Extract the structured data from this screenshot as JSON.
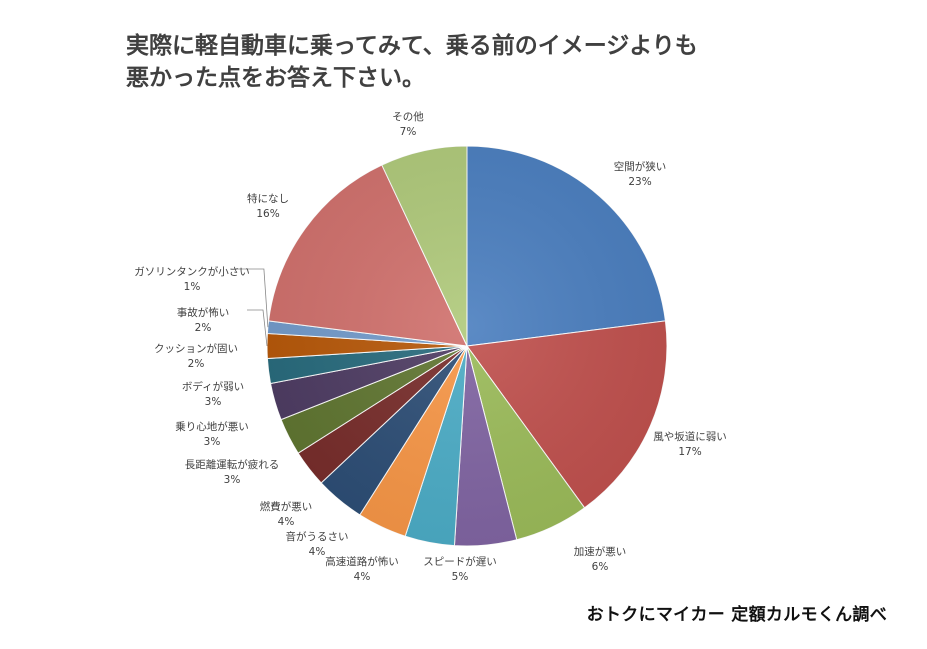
{
  "title_line1": "実際に軽自動車に乗ってみて、乗る前のイメージよりも",
  "title_line2": "悪かった点をお答え下さい。",
  "source": "おトクにマイカー  定額カルモくん調べ",
  "chart_data": {
    "type": "pie",
    "title": "実際に軽自動車に乗ってみて、乗る前のイメージよりも悪かった点をお答え下さい。",
    "slices": [
      {
        "label": "空間が狭い",
        "pct_label": "23%",
        "value": 23,
        "color": "#4a7ebf"
      },
      {
        "label": "風や坂道に弱い",
        "pct_label": "17%",
        "value": 17,
        "color": "#c0504d"
      },
      {
        "label": "加速が悪い",
        "pct_label": "6%",
        "value": 6,
        "color": "#9bbb59"
      },
      {
        "label": "スピードが遅い",
        "pct_label": "5%",
        "value": 5,
        "color": "#8064a2"
      },
      {
        "label": "高速道路が怖い",
        "pct_label": "4%",
        "value": 4,
        "color": "#4bacc6"
      },
      {
        "label": "音がうるさい",
        "pct_label": "4%",
        "value": 4,
        "color": "#f79646"
      },
      {
        "label": "燃費が悪い",
        "pct_label": "4%",
        "value": 4,
        "color": "#2c4d75"
      },
      {
        "label": "長距離運転が疲れる",
        "pct_label": "3%",
        "value": 3,
        "color": "#772c2a"
      },
      {
        "label": "乗り心地が悪い",
        "pct_label": "3%",
        "value": 3,
        "color": "#5f7530"
      },
      {
        "label": "ボディが弱い",
        "pct_label": "3%",
        "value": 3,
        "color": "#4d3b62"
      },
      {
        "label": "クッションが固い",
        "pct_label": "2%",
        "value": 2,
        "color": "#276a7c"
      },
      {
        "label": "事故が怖い",
        "pct_label": "2%",
        "value": 2,
        "color": "#b65708"
      },
      {
        "label": "ガソリンタンクが小さい",
        "pct_label": "1%",
        "value": 1,
        "color": "#729aca"
      },
      {
        "label": "特になし",
        "pct_label": "16%",
        "value": 16,
        "color": "#d0706c"
      },
      {
        "label": "その他",
        "pct_label": "7%",
        "value": 7,
        "color": "#afc97a"
      }
    ]
  }
}
